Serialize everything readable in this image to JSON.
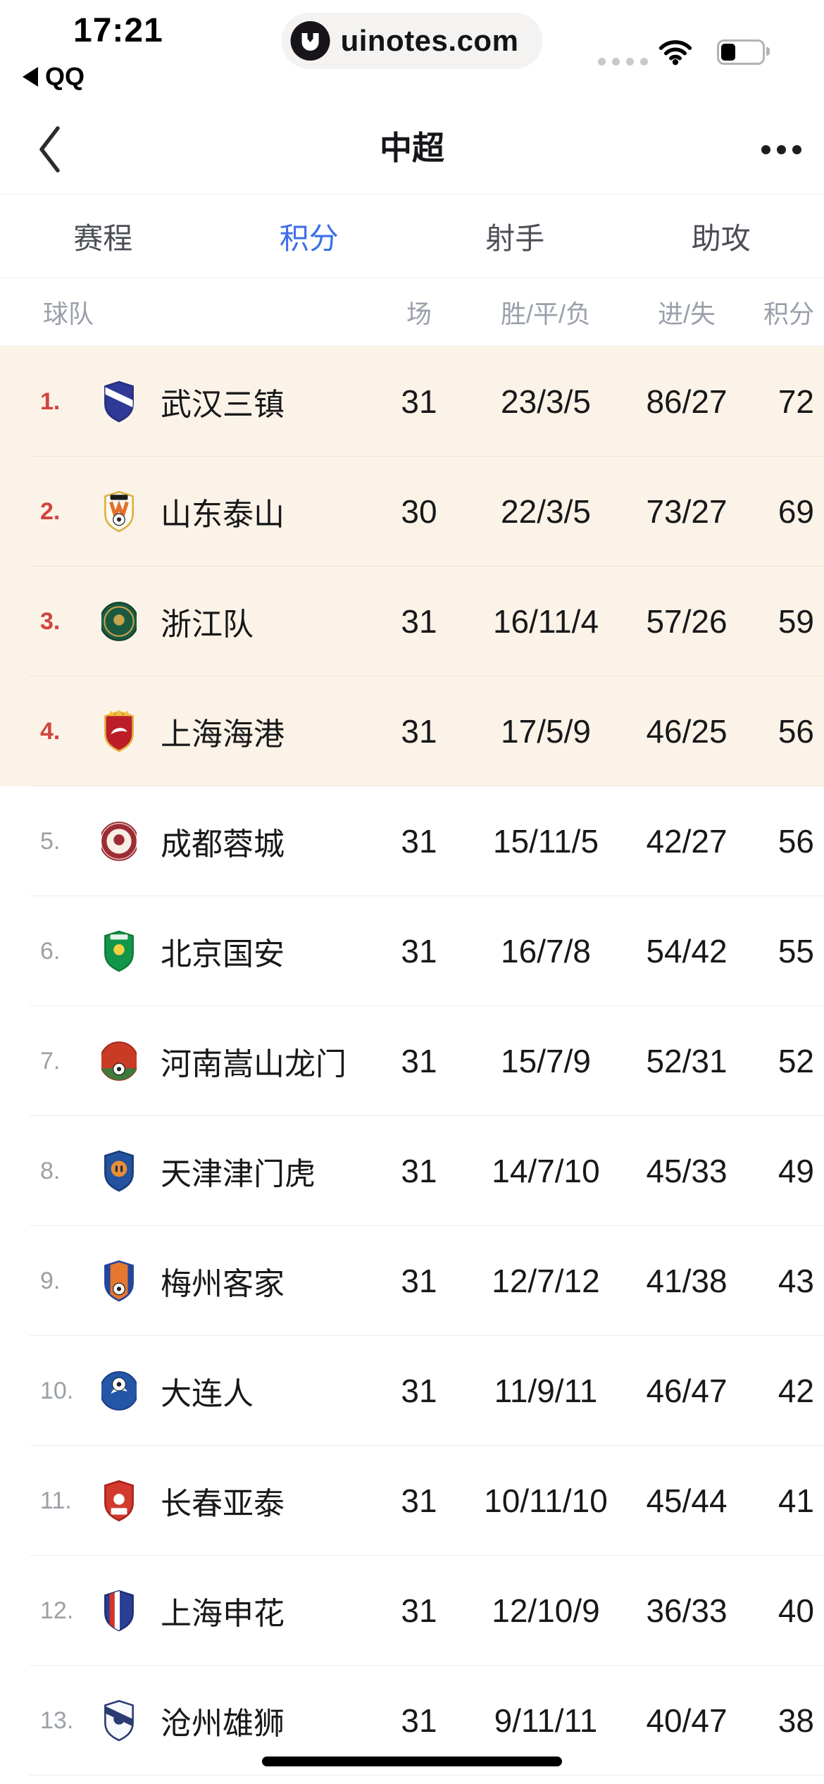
{
  "colors": {
    "accent_blue": "#3d6ee8",
    "rank_red": "#cf463e",
    "highlight_bg": "#fcf3e8",
    "divider": "#ededed",
    "text_primary": "#17181a",
    "text_secondary": "#9aa0ab"
  },
  "status_bar": {
    "time": "17:21",
    "back_app": "QQ",
    "pill_text": "uinotes.com",
    "battery_percent": 40
  },
  "nav": {
    "title": "中超"
  },
  "tabs": [
    {
      "label": "赛程",
      "active": false
    },
    {
      "label": "积分",
      "active": true
    },
    {
      "label": "射手",
      "active": false
    },
    {
      "label": "助攻",
      "active": false
    }
  ],
  "table": {
    "headers": {
      "team": "球队",
      "played": "场",
      "wdl": "胜/平/负",
      "goals": "进/失",
      "points": "积分"
    },
    "rows": [
      {
        "rank": "1.",
        "team": "武汉三镇",
        "played": "31",
        "wdl": "23/3/5",
        "goals": "86/27",
        "points": "72",
        "top4": true,
        "logo": {
          "name": "wuhan-three-towns-crest",
          "shape": "shield",
          "bg": "#2e3a96",
          "border": "#252f7d",
          "accent": "#ffffff",
          "details": [
            "sash"
          ]
        }
      },
      {
        "rank": "2.",
        "team": "山东泰山",
        "played": "30",
        "wdl": "22/3/5",
        "goals": "73/27",
        "points": "69",
        "top4": true,
        "logo": {
          "name": "shandong-taishan-crest",
          "shape": "shield",
          "bg": "#fdfaf0",
          "border": "#d9b13f",
          "accent": "#e2702c",
          "accent2": "#1a1a1a",
          "details": [
            "topbar",
            "zigzag",
            "ball"
          ]
        }
      },
      {
        "rank": "3.",
        "team": "浙江队",
        "played": "31",
        "wdl": "16/11/4",
        "goals": "57/26",
        "points": "59",
        "top4": true,
        "logo": {
          "name": "zhejiang-fc-crest",
          "shape": "circle",
          "bg": "#1b5a40",
          "border": "#12402d",
          "accent": "#c9a44c",
          "details": [
            "ring",
            "emblem"
          ]
        }
      },
      {
        "rank": "4.",
        "team": "上海海港",
        "played": "31",
        "wdl": "17/5/9",
        "goals": "46/25",
        "points": "56",
        "top4": true,
        "logo": {
          "name": "shanghai-port-crest",
          "shape": "shield",
          "bg": "#bb1e28",
          "border": "#e3b33e",
          "accent": "#f2c13d",
          "details": [
            "crown",
            "swoosh"
          ]
        }
      },
      {
        "rank": "5.",
        "team": "成都蓉城",
        "played": "31",
        "wdl": "15/11/5",
        "goals": "42/27",
        "points": "56",
        "top4": false,
        "logo": {
          "name": "chengdu-rongcheng-crest",
          "shape": "circle",
          "bg": "#f7efe4",
          "border": "#9d2c35",
          "accent": "#9d2c35",
          "details": [
            "thickring",
            "emblem"
          ]
        }
      },
      {
        "rank": "6.",
        "team": "北京国安",
        "played": "31",
        "wdl": "16/7/8",
        "goals": "54/42",
        "points": "55",
        "top4": false,
        "logo": {
          "name": "beijing-guoan-crest",
          "shape": "shield",
          "bg": "#13964a",
          "border": "#0e7a3b",
          "accent": "#f2d23e",
          "accent2": "#e8f2ea",
          "details": [
            "topbar",
            "emblem"
          ]
        }
      },
      {
        "rank": "7.",
        "team": "河南嵩山龙门",
        "played": "31",
        "wdl": "15/7/9",
        "goals": "52/31",
        "points": "52",
        "top4": false,
        "logo": {
          "name": "henan-songshan-longmen-crest",
          "shape": "circle",
          "bg": "#c93b25",
          "border": "#a32d1c",
          "accent": "#3c7a3d",
          "details": [
            "bottomband",
            "ball"
          ]
        }
      },
      {
        "rank": "8.",
        "team": "天津津门虎",
        "played": "31",
        "wdl": "14/7/10",
        "goals": "45/33",
        "points": "49",
        "top4": false,
        "logo": {
          "name": "tianjin-jinmen-tiger-crest",
          "shape": "shield",
          "bg": "#24529e",
          "border": "#173c7d",
          "accent": "#e98f35",
          "details": [
            "face"
          ]
        }
      },
      {
        "rank": "9.",
        "team": "梅州客家",
        "played": "31",
        "wdl": "12/7/12",
        "goals": "41/38",
        "points": "43",
        "top4": false,
        "logo": {
          "name": "meizhou-hakka-crest",
          "shape": "shield",
          "bg": "#e5772e",
          "border": "#24459a",
          "accent": "#24459a",
          "details": [
            "sidebars",
            "ball"
          ]
        }
      },
      {
        "rank": "10.",
        "team": "大连人",
        "played": "31",
        "wdl": "11/9/11",
        "goals": "46/47",
        "points": "42",
        "top4": false,
        "logo": {
          "name": "dalian-pro-crest",
          "shape": "circle",
          "bg": "#2456a8",
          "border": "#1a3f86",
          "accent": "#ffffff",
          "details": [
            "balltop",
            "swoosh"
          ]
        }
      },
      {
        "rank": "11.",
        "team": "长春亚泰",
        "played": "31",
        "wdl": "10/11/10",
        "goals": "45/44",
        "points": "41",
        "top4": false,
        "logo": {
          "name": "changchun-yatai-crest",
          "shape": "shield",
          "bg": "#d23a2e",
          "border": "#a8221d",
          "accent": "#ffffff",
          "details": [
            "emblem",
            "bottombar"
          ]
        }
      },
      {
        "rank": "12.",
        "team": "上海申花",
        "played": "31",
        "wdl": "12/10/9",
        "goals": "36/33",
        "points": "40",
        "top4": false,
        "logo": {
          "name": "shanghai-shenhua-crest",
          "shape": "shield",
          "bg": "#2a3f94",
          "border": "#1d2e75",
          "accent": "#d3332b",
          "accent2": "#ffffff",
          "details": [
            "stripes"
          ]
        }
      },
      {
        "rank": "13.",
        "team": "沧州雄狮",
        "played": "31",
        "wdl": "9/11/11",
        "goals": "40/47",
        "points": "38",
        "top4": false,
        "logo": {
          "name": "cangzhou-mighty-lions-crest",
          "shape": "shield",
          "bg": "#f7f9fc",
          "border": "#2b3c72",
          "accent": "#2b3c72",
          "details": [
            "sash",
            "emblem"
          ]
        }
      }
    ]
  }
}
